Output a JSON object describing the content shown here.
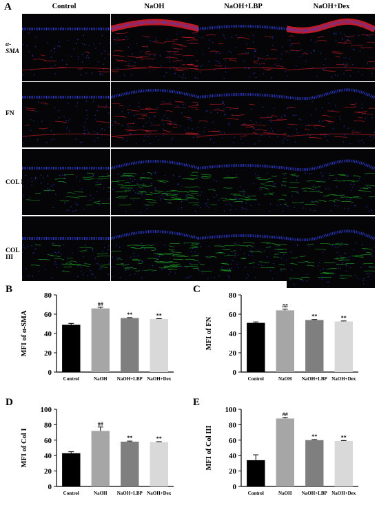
{
  "panel_letters": {
    "a": "A",
    "b": "B",
    "c": "C",
    "d": "D",
    "e": "E"
  },
  "columns": [
    "Control",
    "NaOH",
    "NaOH+LBP",
    "NaOH+Dex"
  ],
  "rows": [
    "α-SMA",
    "FN",
    "COL I",
    "COL III"
  ],
  "stain_colors": {
    "nuclei": "#3344ee",
    "red": "#e0202a",
    "green": "#22c02a"
  },
  "chart_data": [
    {
      "type": "bar",
      "panel": "B",
      "categories": [
        "Control",
        "NaOH",
        "NaOH+LBP",
        "NaOH+Dex"
      ],
      "values": [
        49,
        66,
        56,
        55
      ],
      "errors": [
        1.5,
        1.2,
        0.5,
        0.4
      ],
      "annotations": [
        "",
        "##",
        "**",
        "**"
      ],
      "ylabel": "MFI of α-SMA",
      "ylim": [
        0,
        80
      ],
      "yticks": [
        0,
        20,
        40,
        60,
        80
      ],
      "bar_colors": [
        "#000000",
        "#a6a6a6",
        "#7f7f7f",
        "#d9d9d9"
      ]
    },
    {
      "type": "bar",
      "panel": "C",
      "categories": [
        "Control",
        "NaOH",
        "NaOH+LBP",
        "NaOH+Dex"
      ],
      "values": [
        51,
        64,
        54,
        52.5
      ],
      "errors": [
        1,
        1.2,
        0.5,
        0.5
      ],
      "annotations": [
        "",
        "##",
        "**",
        "**"
      ],
      "ylabel": "MFI of FN",
      "ylim": [
        0,
        80
      ],
      "yticks": [
        0,
        20,
        40,
        60,
        80
      ],
      "bar_colors": [
        "#000000",
        "#a6a6a6",
        "#7f7f7f",
        "#d9d9d9"
      ]
    },
    {
      "type": "bar",
      "panel": "D",
      "categories": [
        "Control",
        "NaOH",
        "NaOH+LBP",
        "NaOH+Dex"
      ],
      "values": [
        43,
        72,
        58,
        57.5
      ],
      "errors": [
        2,
        5,
        0.8,
        0.5
      ],
      "annotations": [
        "",
        "##",
        "**",
        "**"
      ],
      "ylabel": "MFI of Col I",
      "ylim": [
        0,
        100
      ],
      "yticks": [
        0,
        20,
        40,
        60,
        80,
        100
      ],
      "bar_colors": [
        "#000000",
        "#a6a6a6",
        "#7f7f7f",
        "#d9d9d9"
      ]
    },
    {
      "type": "bar",
      "panel": "E",
      "categories": [
        "Control",
        "NaOH",
        "NaOH+LBP",
        "NaOH+Dex"
      ],
      "values": [
        34,
        88,
        60,
        59
      ],
      "errors": [
        7,
        1.5,
        0.8,
        0.5
      ],
      "annotations": [
        "",
        "##",
        "**",
        "**"
      ],
      "ylabel": "MFI of Col III",
      "ylim": [
        0,
        100
      ],
      "yticks": [
        0,
        20,
        40,
        60,
        80,
        100
      ],
      "bar_colors": [
        "#000000",
        "#a6a6a6",
        "#7f7f7f",
        "#d9d9d9"
      ]
    }
  ]
}
